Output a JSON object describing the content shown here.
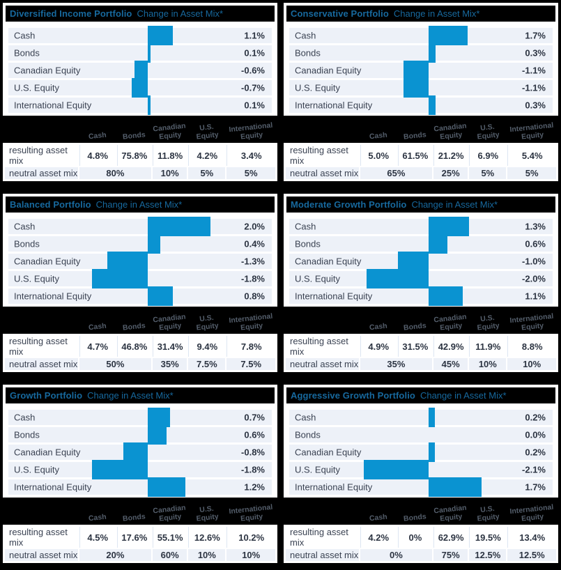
{
  "colors": {
    "page_bg": "#000000",
    "card_bg": "#ffffff",
    "stripe": "#edf1f8",
    "bar": "#0a93d1",
    "title_blue": "#17699e",
    "text_dark": "#3a4252",
    "value_dark": "#2c3442",
    "band_header": "#545e6b",
    "cell_line": "#dde6f2"
  },
  "subtitle": "Change in Asset Mix*",
  "table": {
    "col_headers": [
      "Cash",
      "Bonds",
      "Canadian\nEquity",
      "U.S.\nEquity",
      "International\nEquity"
    ],
    "row_labels": [
      "resulting asset mix",
      "neutral asset mix"
    ]
  },
  "chart_data": [
    {
      "type": "bar",
      "orientation": "horizontal",
      "title": "Diversified Income Portfolio",
      "subtitle": "Change in Asset Mix*",
      "categories": [
        "Cash",
        "Bonds",
        "Canadian Equity",
        "U.S. Equity",
        "International Equity"
      ],
      "values": [
        1.1,
        0.1,
        -0.6,
        -0.7,
        0.1
      ],
      "labels": [
        "1.1%",
        "0.1%",
        "-0.6%",
        "-0.7%",
        "0.1%"
      ],
      "xlim": [
        -3,
        3
      ],
      "resulting_asset_mix": [
        "4.8%",
        "75.8%",
        "11.8%",
        "4.2%",
        "3.4%"
      ],
      "neutral_asset_mix": [
        "80%",
        "10%",
        "5%",
        "5%"
      ]
    },
    {
      "type": "bar",
      "orientation": "horizontal",
      "title": "Conservative Portfolio",
      "subtitle": "Change in Asset Mix*",
      "categories": [
        "Cash",
        "Bonds",
        "Canadian Equity",
        "U.S. Equity",
        "International Equity"
      ],
      "values": [
        1.7,
        0.3,
        -1.1,
        -1.1,
        0.3
      ],
      "labels": [
        "1.7%",
        "0.3%",
        "-1.1%",
        "-1.1%",
        "0.3%"
      ],
      "xlim": [
        -3,
        3
      ],
      "resulting_asset_mix": [
        "5.0%",
        "61.5%",
        "21.2%",
        "6.9%",
        "5.4%"
      ],
      "neutral_asset_mix": [
        "65%",
        "25%",
        "5%",
        "5%"
      ]
    },
    {
      "type": "bar",
      "orientation": "horizontal",
      "title": "Balanced Portfolio",
      "subtitle": "Change in Asset Mix*",
      "categories": [
        "Cash",
        "Bonds",
        "Canadian Equity",
        "U.S. Equity",
        "International Equity"
      ],
      "values": [
        2.0,
        0.4,
        -1.3,
        -1.8,
        0.8
      ],
      "labels": [
        "2.0%",
        "0.4%",
        "-1.3%",
        "-1.8%",
        "0.8%"
      ],
      "xlim": [
        -2.2,
        2.2
      ],
      "resulting_asset_mix": [
        "4.7%",
        "46.8%",
        "31.4%",
        "9.4%",
        "7.8%"
      ],
      "neutral_asset_mix": [
        "50%",
        "35%",
        "7.5%",
        "7.5%"
      ]
    },
    {
      "type": "bar",
      "orientation": "horizontal",
      "title": "Moderate Growth Portfolio",
      "subtitle": "Change in Asset Mix*",
      "categories": [
        "Cash",
        "Bonds",
        "Canadian Equity",
        "U.S. Equity",
        "International Equity"
      ],
      "values": [
        1.3,
        0.6,
        -1.0,
        -2.0,
        1.1
      ],
      "labels": [
        "1.3%",
        "0.6%",
        "-1.0%",
        "-2.0%",
        "1.1%"
      ],
      "xlim": [
        -2.2,
        2.2
      ],
      "resulting_asset_mix": [
        "4.9%",
        "31.5%",
        "42.9%",
        "11.9%",
        "8.8%"
      ],
      "neutral_asset_mix": [
        "35%",
        "45%",
        "10%",
        "10%"
      ]
    },
    {
      "type": "bar",
      "orientation": "horizontal",
      "title": "Growth Portfolio",
      "subtitle": "Change in Asset Mix*",
      "categories": [
        "Cash",
        "Bonds",
        "Canadian Equity",
        "U.S. Equity",
        "International Equity"
      ],
      "values": [
        0.7,
        0.6,
        -0.8,
        -1.8,
        1.2
      ],
      "labels": [
        "0.7%",
        "0.6%",
        "-0.8%",
        "-1.8%",
        "1.2%"
      ],
      "xlim": [
        -2.2,
        2.2
      ],
      "resulting_asset_mix": [
        "4.5%",
        "17.6%",
        "55.1%",
        "12.6%",
        "10.2%"
      ],
      "neutral_asset_mix": [
        "20%",
        "60%",
        "10%",
        "10%"
      ]
    },
    {
      "type": "bar",
      "orientation": "horizontal",
      "title": "Aggressive Growth Portfolio",
      "subtitle": "Change in Asset Mix*",
      "categories": [
        "Cash",
        "Bonds",
        "Canadian Equity",
        "U.S. Equity",
        "International Equity"
      ],
      "values": [
        0.2,
        0.0,
        0.2,
        -2.1,
        1.7
      ],
      "labels": [
        "0.2%",
        "0.0%",
        "0.2%",
        "-2.1%",
        "1.7%"
      ],
      "xlim": [
        -2.2,
        2.2
      ],
      "resulting_asset_mix": [
        "4.2%",
        "0%",
        "62.9%",
        "19.5%",
        "13.4%"
      ],
      "neutral_asset_mix": [
        "0%",
        "75%",
        "12.5%",
        "12.5%"
      ]
    }
  ]
}
